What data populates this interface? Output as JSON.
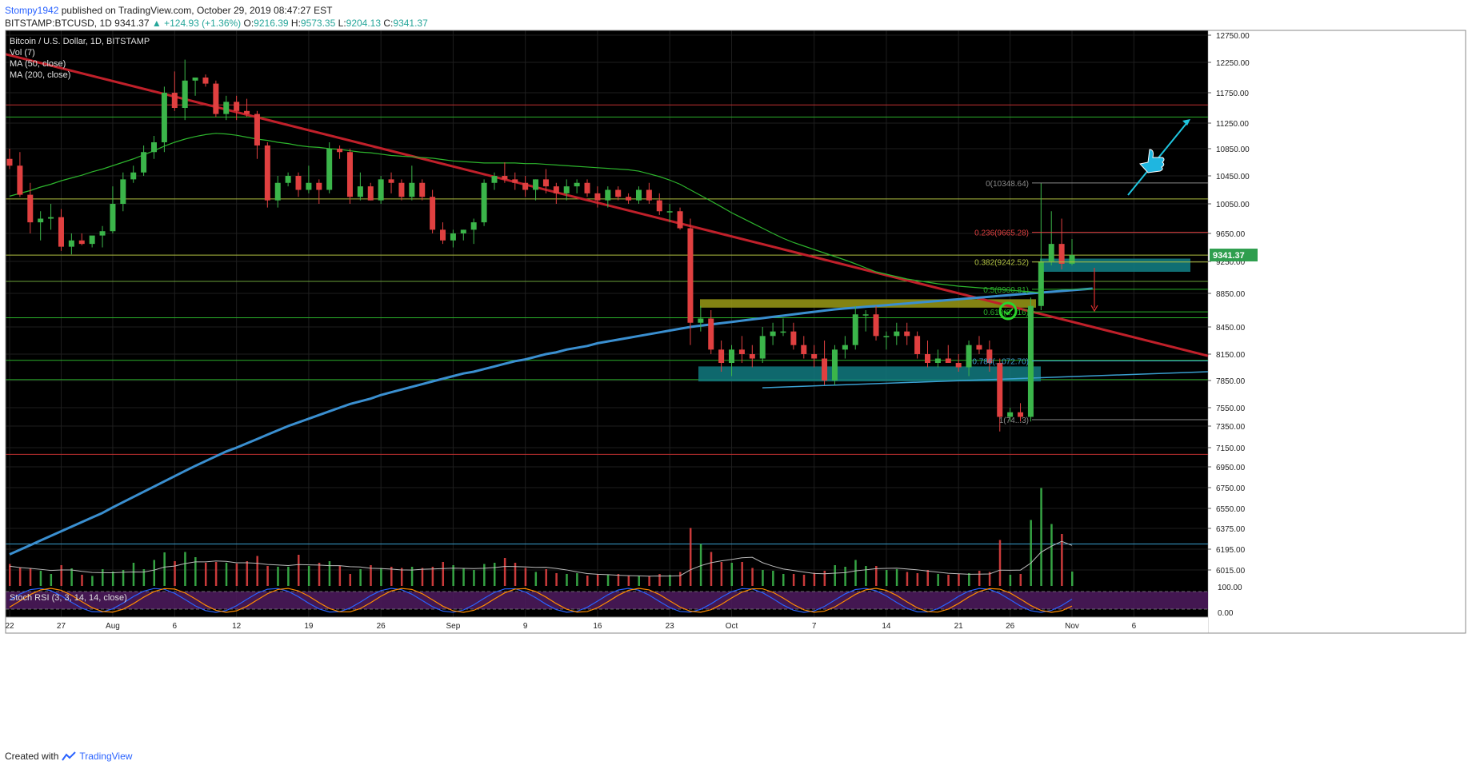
{
  "header": {
    "author": "Stompy1942",
    "published": "published on TradingView.com, October 29, 2019 08:47:27 EST",
    "symbol": "BITSTAMP:BTCUSD, 1D",
    "last": "9341.37",
    "change": "▲ +124.93 (+1.36%)",
    "o_label": "O:",
    "o": "9216.39",
    "h_label": "H:",
    "h": "9573.35",
    "l_label": "L:",
    "l": "9204.13",
    "c_label": "C:",
    "c": "9341.37"
  },
  "legend": {
    "title": "Bitcoin / U.S. Dollar, 1D, BITSTAMP",
    "vol": "Vol (7)",
    "ma50": "MA (50, close)",
    "ma200": "MA (200, close)"
  },
  "rsi_label": "Stoch RSI (3, 3, 14, 14, close)",
  "price_tag": "9341.37",
  "fib_labels": [
    "0(10348.64)",
    "0.236(9665.28)",
    "0.382(9242.52)",
    "0.5(8900.81)",
    "0.618(8...16)",
    "0.786(...072.70)",
    "1(74...3)"
  ],
  "footer": {
    "created": "Created with",
    "brand": "TradingView"
  },
  "colors": {
    "background": "#000000",
    "up": "#3bb54a",
    "down": "#e04040",
    "ma50": "#2db52d",
    "ma200": "#3a8fd0",
    "trend": "#c0202a",
    "zone_teal": "#127a80",
    "zone_yellow": "#9a9a16",
    "arrow": "#1fc6e0",
    "rsi_band": "#4a1a5a"
  },
  "chart_data": {
    "type": "candlestick",
    "title": "Bitcoin / U.S. Dollar, 1D, BITSTAMP",
    "y_ticks": [
      12750,
      12250,
      11750,
      11250,
      10850,
      10450,
      10050,
      9650,
      9250,
      8850,
      8450,
      8150,
      7850,
      7550,
      7350,
      7150,
      6950,
      6750,
      6550,
      6375,
      6195,
      6015
    ],
    "rsi_ticks": [
      "100.00",
      "0.00"
    ],
    "x_ticks": [
      "22",
      "27",
      "Aug",
      "6",
      "12",
      "19",
      "26",
      "Sep",
      "9",
      "16",
      "23",
      "Oct",
      "7",
      "14",
      "21",
      "26",
      "Nov",
      "6"
    ],
    "candles": [
      [
        10700,
        10850,
        10550,
        10600
      ],
      [
        10600,
        10800,
        10150,
        10180
      ],
      [
        10180,
        10350,
        9650,
        9800
      ],
      [
        9800,
        9950,
        9550,
        9850
      ],
      [
        9850,
        10050,
        9700,
        9870
      ],
      [
        9870,
        9980,
        9400,
        9460
      ],
      [
        9460,
        9650,
        9350,
        9550
      ],
      [
        9550,
        9650,
        9480,
        9500
      ],
      [
        9500,
        9600,
        9450,
        9620
      ],
      [
        9620,
        9750,
        9450,
        9680
      ],
      [
        9680,
        10300,
        9650,
        10050
      ],
      [
        10050,
        10500,
        9950,
        10400
      ],
      [
        10400,
        10600,
        10350,
        10500
      ],
      [
        10500,
        10900,
        10450,
        10800
      ],
      [
        10800,
        11050,
        10700,
        10950
      ],
      [
        10950,
        11850,
        10800,
        11750
      ],
      [
        11750,
        12100,
        11450,
        11500
      ],
      [
        11500,
        12300,
        11300,
        11950
      ],
      [
        11950,
        12000,
        11700,
        12000
      ],
      [
        12000,
        12050,
        11850,
        11900
      ],
      [
        11900,
        11950,
        11350,
        11400
      ],
      [
        11400,
        11700,
        11300,
        11600
      ],
      [
        11600,
        11700,
        11300,
        11450
      ],
      [
        11450,
        11650,
        11350,
        11400
      ],
      [
        11400,
        11450,
        10700,
        10900
      ],
      [
        10900,
        10950,
        10000,
        10100
      ],
      [
        10100,
        10450,
        10000,
        10350
      ],
      [
        10350,
        10500,
        10300,
        10450
      ],
      [
        10450,
        10500,
        10150,
        10250
      ],
      [
        10250,
        10600,
        10200,
        10350
      ],
      [
        10350,
        10400,
        10050,
        10250
      ],
      [
        10250,
        10950,
        10200,
        10850
      ],
      [
        10850,
        10900,
        10700,
        10800
      ],
      [
        10800,
        10850,
        10050,
        10150
      ],
      [
        10150,
        10500,
        10100,
        10300
      ],
      [
        10300,
        10350,
        10100,
        10100
      ],
      [
        10100,
        10450,
        10050,
        10400
      ],
      [
        10400,
        10500,
        10200,
        10350
      ],
      [
        10350,
        10400,
        10100,
        10150
      ],
      [
        10150,
        10600,
        10100,
        10350
      ],
      [
        10350,
        10400,
        10100,
        10150
      ],
      [
        10150,
        10250,
        9650,
        9700
      ],
      [
        9700,
        9800,
        9500,
        9550
      ],
      [
        9550,
        9700,
        9450,
        9650
      ],
      [
        9650,
        9700,
        9550,
        9700
      ],
      [
        9700,
        9850,
        9500,
        9800
      ],
      [
        9800,
        10400,
        9750,
        10350
      ],
      [
        10350,
        10500,
        10250,
        10450
      ],
      [
        10450,
        10650,
        10350,
        10400
      ],
      [
        10400,
        10500,
        10250,
        10350
      ],
      [
        10350,
        10450,
        10150,
        10250
      ],
      [
        10250,
        10400,
        10100,
        10400
      ],
      [
        10400,
        10550,
        10200,
        10300
      ],
      [
        10300,
        10350,
        10050,
        10200
      ],
      [
        10200,
        10400,
        10100,
        10300
      ],
      [
        10300,
        10400,
        10200,
        10350
      ],
      [
        10350,
        10400,
        10150,
        10200
      ],
      [
        10200,
        10300,
        10000,
        10100
      ],
      [
        10100,
        10300,
        10000,
        10250
      ],
      [
        10250,
        10300,
        10100,
        10150
      ],
      [
        10150,
        10200,
        10050,
        10100
      ],
      [
        10100,
        10300,
        10050,
        10250
      ],
      [
        10250,
        10350,
        10050,
        10100
      ],
      [
        10100,
        10200,
        9900,
        9950
      ],
      [
        9950,
        10050,
        9800,
        9950
      ],
      [
        9950,
        10000,
        9700,
        9720
      ],
      [
        9720,
        9850,
        8250,
        8500
      ],
      [
        8500,
        8700,
        8400,
        8550
      ],
      [
        8550,
        8650,
        8150,
        8200
      ],
      [
        8200,
        8300,
        7950,
        8050
      ],
      [
        8050,
        8250,
        7900,
        8200
      ],
      [
        8200,
        8350,
        8050,
        8150
      ],
      [
        8150,
        8250,
        8000,
        8100
      ],
      [
        8100,
        8450,
        8050,
        8350
      ],
      [
        8350,
        8500,
        8250,
        8400
      ],
      [
        8400,
        8550,
        8350,
        8400
      ],
      [
        8400,
        8500,
        8200,
        8250
      ],
      [
        8250,
        8350,
        8100,
        8150
      ],
      [
        8150,
        8250,
        8000,
        8100
      ],
      [
        8100,
        8300,
        7800,
        7850
      ],
      [
        7850,
        8250,
        7800,
        8200
      ],
      [
        8200,
        8350,
        8100,
        8250
      ],
      [
        8250,
        8700,
        8200,
        8600
      ],
      [
        8600,
        8650,
        8400,
        8600
      ],
      [
        8600,
        8700,
        8300,
        8350
      ],
      [
        8350,
        8400,
        8200,
        8350
      ],
      [
        8350,
        8500,
        8250,
        8400
      ],
      [
        8400,
        8500,
        8250,
        8350
      ],
      [
        8350,
        8400,
        8100,
        8150
      ],
      [
        8150,
        8300,
        8000,
        8050
      ],
      [
        8050,
        8200,
        8000,
        8100
      ],
      [
        8100,
        8250,
        8050,
        8050
      ],
      [
        8050,
        8150,
        7950,
        8000
      ],
      [
        8000,
        8300,
        7900,
        8250
      ],
      [
        8250,
        8350,
        8150,
        8200
      ],
      [
        8200,
        8300,
        7950,
        8050
      ],
      [
        8050,
        8100,
        7300,
        7450
      ],
      [
        7450,
        7550,
        7400,
        7500
      ],
      [
        7500,
        7600,
        7400,
        7450
      ],
      [
        7450,
        8800,
        7400,
        8700
      ],
      [
        8700,
        10350,
        8650,
        9250
      ],
      [
        9250,
        9950,
        9200,
        9500
      ],
      [
        9500,
        9850,
        9150,
        9220
      ],
      [
        9220,
        9570,
        9200,
        9340
      ]
    ],
    "volume_pct": [
      55,
      47,
      45,
      38,
      30,
      52,
      44,
      28,
      25,
      42,
      36,
      40,
      58,
      42,
      65,
      84,
      62,
      85,
      72,
      58,
      60,
      58,
      56,
      62,
      75,
      50,
      48,
      48,
      78,
      50,
      58,
      62,
      50,
      30,
      42,
      52,
      45,
      48,
      45,
      48,
      45,
      48,
      60,
      52,
      45,
      40,
      55,
      58,
      70,
      58,
      45,
      35,
      42,
      32,
      30,
      32,
      26,
      30,
      28,
      30,
      25,
      26,
      25,
      30,
      28,
      35,
      145,
      105,
      85,
      60,
      58,
      60,
      45,
      40,
      38,
      30,
      30,
      28,
      33,
      38,
      52,
      48,
      65,
      50,
      50,
      40,
      42,
      35,
      32,
      40,
      30,
      28,
      30,
      32,
      38,
      35,
      115,
      28,
      30,
      165,
      245,
      155,
      130,
      36
    ],
    "ma50": [
      10160,
      10200,
      10240,
      10290,
      10330,
      10380,
      10420,
      10460,
      10510,
      10550,
      10600,
      10650,
      10700,
      10760,
      10820,
      10890,
      10950,
      11000,
      11040,
      11070,
      11090,
      11080,
      11060,
      11030,
      11000,
      10980,
      10950,
      10930,
      10900,
      10880,
      10870,
      10850,
      10840,
      10820,
      10800,
      10790,
      10770,
      10750,
      10740,
      10730,
      10720,
      10710,
      10690,
      10670,
      10660,
      10650,
      10640,
      10640,
      10640,
      10640,
      10630,
      10630,
      10620,
      10610,
      10600,
      10590,
      10580,
      10570,
      10560,
      10550,
      10540,
      10520,
      10480,
      10440,
      10390,
      10330,
      10250,
      10170,
      10090,
      10010,
      9930,
      9860,
      9790,
      9720,
      9650,
      9580,
      9520,
      9470,
      9420,
      9370,
      9320,
      9270,
      9220,
      9170,
      9120,
      9090,
      9060,
      9030,
      9010,
      8990,
      8970,
      8955,
      8940,
      8930,
      8920,
      8910,
      8900,
      8890,
      8880,
      8870,
      8860
    ],
    "ma200": [
      6150,
      6190,
      6230,
      6270,
      6310,
      6350,
      6390,
      6430,
      6470,
      6510,
      6560,
      6610,
      6660,
      6710,
      6760,
      6810,
      6860,
      6910,
      6960,
      7010,
      7060,
      7110,
      7150,
      7190,
      7230,
      7270,
      7310,
      7350,
      7390,
      7430,
      7470,
      7510,
      7550,
      7590,
      7620,
      7650,
      7690,
      7720,
      7750,
      7780,
      7810,
      7840,
      7870,
      7900,
      7930,
      7950,
      7980,
      8010,
      8040,
      8070,
      8090,
      8120,
      8150,
      8170,
      8200,
      8220,
      8240,
      8270,
      8290,
      8310,
      8330,
      8350,
      8370,
      8390,
      8410,
      8430,
      8450,
      8465,
      8480,
      8495,
      8510,
      8525,
      8540,
      8555,
      8570,
      8585,
      8600,
      8615,
      8630,
      8645,
      8660,
      8670,
      8680,
      8690,
      8700,
      8710,
      8720,
      8730,
      8740,
      8750,
      8760,
      8770,
      8780,
      8790,
      8800,
      8810,
      8820,
      8830,
      8840,
      8850,
      8860,
      8870,
      8880,
      8890,
      8900,
      8910
    ],
    "h_levels": [
      11550,
      11350,
      10120,
      9340,
      9000,
      8560,
      8080,
      7860,
      7080,
      6240
    ],
    "fib_levels": [
      10348.64,
      9665.28,
      9242.52,
      8900.81,
      8630.16,
      8072.7,
      7420
    ]
  }
}
